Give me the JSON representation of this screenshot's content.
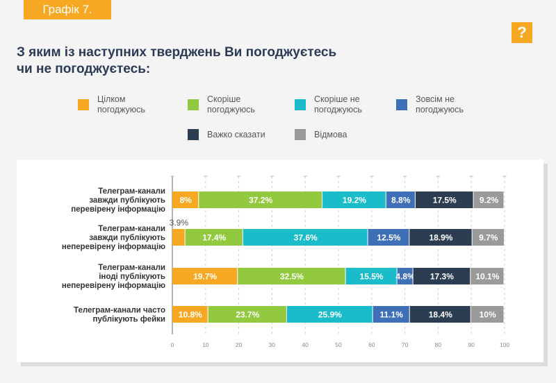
{
  "header": {
    "badge": "Графік 7.",
    "help_icon": "?"
  },
  "title": {
    "line1": "З яким із наступних тверджень Ви погоджуєтесь",
    "line2": "чи не погоджуєтесь:"
  },
  "chart_data": {
    "type": "bar",
    "orientation": "horizontal",
    "stacked": true,
    "title": "З яким із наступних тверджень Ви погоджуєтесь чи не погоджуєтесь:",
    "xlim": [
      0,
      100
    ],
    "xticks": [
      "0",
      "10",
      "20",
      "30",
      "40",
      "50",
      "60",
      "70",
      "80",
      "90",
      "100"
    ],
    "legend_position": "top",
    "categories": [
      {
        "lines": [
          "Телеграм-канали",
          "завжди публікують",
          "перевірену інформацію"
        ]
      },
      {
        "lines": [
          "Телеграм-канали",
          "завжди публікують",
          "неперевірену інформацію"
        ]
      },
      {
        "lines": [
          "Телеграм-канали",
          "іноді публікують",
          "неперевірену інформацію"
        ]
      },
      {
        "lines": [
          "Телеграм-канали часто",
          "публікують фейки"
        ]
      }
    ],
    "series": [
      {
        "name": "Цілком погоджуюсь",
        "legend_lines": [
          "Цілком",
          "погоджуюсь"
        ],
        "color": "#f7a823",
        "values": [
          8,
          3.9,
          19.7,
          10.8
        ],
        "labels": [
          "8%",
          "3.9%",
          "19.7%",
          "10.8%"
        ]
      },
      {
        "name": "Скоріше погоджуюсь",
        "legend_lines": [
          "Скоріше",
          "погоджуюсь"
        ],
        "color": "#93c93e",
        "values": [
          37.2,
          17.4,
          32.5,
          23.7
        ],
        "labels": [
          "37.2%",
          "17.4%",
          "32.5%",
          "23.7%"
        ]
      },
      {
        "name": "Скоріше не погоджуюсь",
        "legend_lines": [
          "Скоріше не",
          "погоджуюсь"
        ],
        "color": "#1bbcc9",
        "values": [
          19.2,
          37.6,
          15.5,
          25.9
        ],
        "labels": [
          "19.2%",
          "37.6%",
          "15.5%",
          "25.9%"
        ]
      },
      {
        "name": "Зовсім не погоджуюсь",
        "legend_lines": [
          "Зовсім не",
          "погоджуюсь"
        ],
        "color": "#3f6fb6",
        "values": [
          8.8,
          12.5,
          4.8,
          11.1
        ],
        "labels": [
          "8.8%",
          "12.5%",
          "4.8%",
          "11.1%"
        ]
      },
      {
        "name": "Важко сказати",
        "legend_lines": [
          "Важко сказати"
        ],
        "color": "#2c3d52",
        "values": [
          17.5,
          18.9,
          17.3,
          18.4
        ],
        "labels": [
          "17.5%",
          "18.9%",
          "17.3%",
          "18.4%"
        ]
      },
      {
        "name": "Відмова",
        "legend_lines": [
          "Відмова"
        ],
        "color": "#9a9a9a",
        "values": [
          9.2,
          9.7,
          10.1,
          10
        ],
        "labels": [
          "9.2%",
          "9.7%",
          "10.1%",
          "10%"
        ]
      }
    ]
  }
}
